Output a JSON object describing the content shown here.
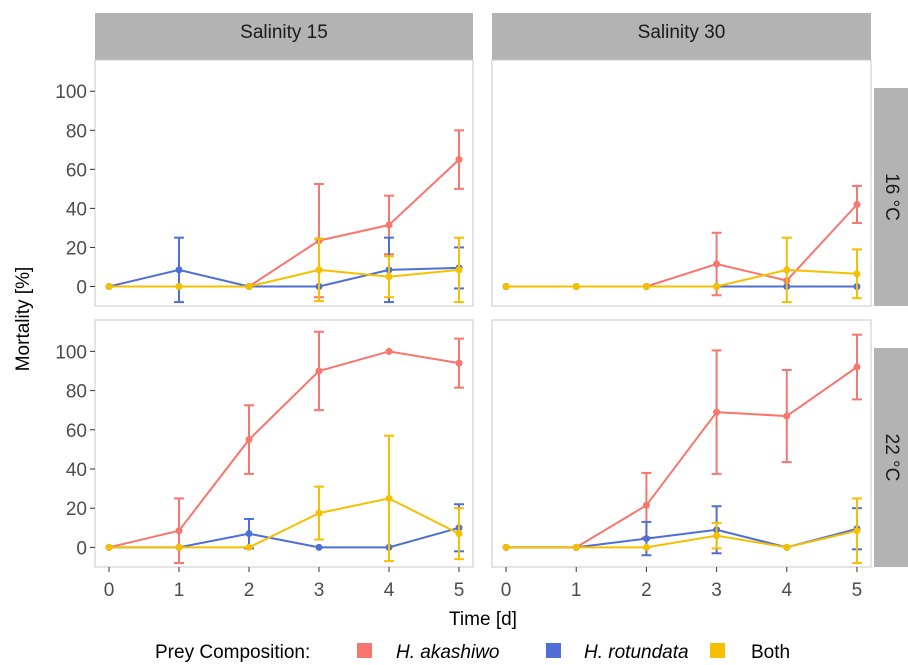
{
  "chart_data": {
    "type": "line",
    "ylabel": "Mortality [%]",
    "xlabel": "Time [d]",
    "x": [
      0,
      1,
      2,
      3,
      4,
      5
    ],
    "xlim": [
      -0.2,
      5.2
    ],
    "ylim": [
      -10,
      116
    ],
    "yticks": [
      0,
      20,
      40,
      60,
      80,
      100
    ],
    "column_strips": [
      "Salinity 15",
      "Salinity 30"
    ],
    "row_strips": [
      "16 °C",
      "22 °C"
    ],
    "legend": {
      "title": "Prey Composition:",
      "position": "bottom",
      "entries": [
        "H. akashiwo",
        "H. rotundata",
        "Both"
      ]
    },
    "colors": {
      "H. akashiwo": "#F8766D",
      "H. rotundata": "#4F6FD6",
      "Both": "#F5C000",
      "strip_bg": "#B3B3B3",
      "panel_border": "#C8C8C8"
    },
    "grid": false,
    "panels": [
      {
        "col": 0,
        "row": 0,
        "series": [
          {
            "name": "H. akashiwo",
            "values": [
              0,
              0,
              0,
              23.5,
              31.5,
              65
            ],
            "err": [
              0,
              0,
              0,
              29,
              15,
              15
            ]
          },
          {
            "name": "H. rotundata",
            "values": [
              0,
              8.5,
              0,
              0,
              8.5,
              9.5
            ],
            "err": [
              0,
              16.5,
              0,
              0,
              16.5,
              10.5
            ]
          },
          {
            "name": "Both",
            "values": [
              0,
              0,
              0,
              8.5,
              5,
              8.5
            ],
            "err": [
              0,
              0,
              0,
              16,
              10.5,
              16.5
            ]
          }
        ]
      },
      {
        "col": 1,
        "row": 0,
        "series": [
          {
            "name": "H. akashiwo",
            "values": [
              0,
              0,
              0,
              11.5,
              3,
              42
            ],
            "err": [
              0,
              0,
              0,
              16,
              0,
              9.5
            ]
          },
          {
            "name": "H. rotundata",
            "values": [
              0,
              0,
              0,
              0,
              0,
              0
            ],
            "err": [
              0,
              0,
              0,
              0,
              0,
              0
            ]
          },
          {
            "name": "Both",
            "values": [
              0,
              0,
              0,
              0,
              8.5,
              6.5
            ],
            "err": [
              0,
              0,
              0,
              0,
              16.5,
              12.5
            ]
          }
        ]
      },
      {
        "col": 0,
        "row": 1,
        "series": [
          {
            "name": "H. akashiwo",
            "values": [
              0,
              8.5,
              55,
              90,
              100,
              94
            ],
            "err": [
              0,
              16.5,
              17.5,
              20,
              0,
              12.5
            ]
          },
          {
            "name": "H. rotundata",
            "values": [
              0,
              0,
              7,
              0,
              0,
              10
            ],
            "err": [
              0,
              0,
              7.5,
              0,
              0,
              12
            ]
          },
          {
            "name": "Both",
            "values": [
              0,
              0,
              0,
              17.5,
              25,
              7
            ],
            "err": [
              0,
              0,
              0,
              13.5,
              32,
              13
            ]
          }
        ]
      },
      {
        "col": 1,
        "row": 1,
        "series": [
          {
            "name": "H. akashiwo",
            "values": [
              0,
              0,
              21.5,
              69,
              67,
              92
            ],
            "err": [
              0,
              0,
              16.5,
              31.5,
              23.5,
              16.5
            ]
          },
          {
            "name": "H. rotundata",
            "values": [
              0,
              0,
              4.5,
              9,
              0,
              9.5
            ],
            "err": [
              0,
              0,
              8.5,
              12,
              0,
              10.5
            ]
          },
          {
            "name": "Both",
            "values": [
              0,
              0,
              0,
              6,
              0,
              8.5
            ],
            "err": [
              0,
              0,
              0,
              6.5,
              0,
              16.5
            ]
          }
        ]
      }
    ]
  }
}
